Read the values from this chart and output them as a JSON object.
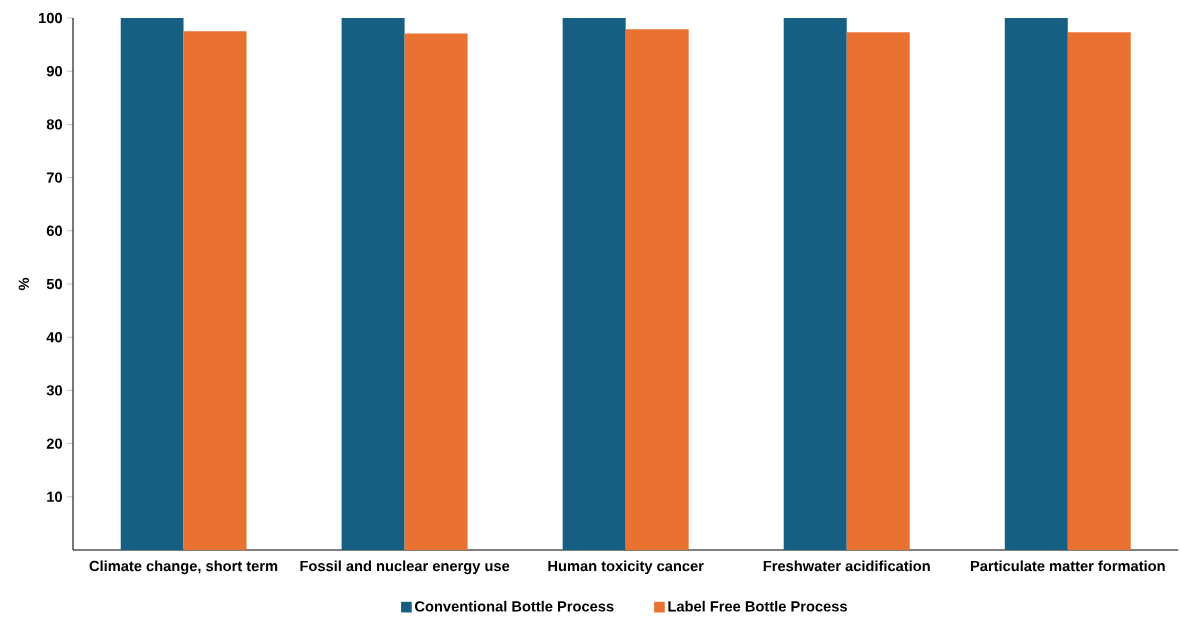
{
  "chart_data": {
    "type": "bar",
    "ylabel": "%",
    "categories": [
      "Climate change, short term",
      "Fossil and nuclear energy use",
      "Human toxicity cancer",
      "Freshwater acidification",
      "Particulate matter formation"
    ],
    "series": [
      {
        "name": "Conventional Bottle Process",
        "color": "#175f82",
        "values": [
          100,
          100,
          100,
          100,
          100
        ]
      },
      {
        "name": "Label Free Bottle Process",
        "color": "#e97132",
        "values": [
          97.5,
          97.1,
          97.9,
          97.3,
          97.3
        ]
      }
    ],
    "ylim": [
      0,
      100
    ],
    "yticks": [
      10,
      20,
      30,
      40,
      50,
      60,
      70,
      80,
      90,
      100
    ],
    "grid": false,
    "legend": "bottom"
  }
}
